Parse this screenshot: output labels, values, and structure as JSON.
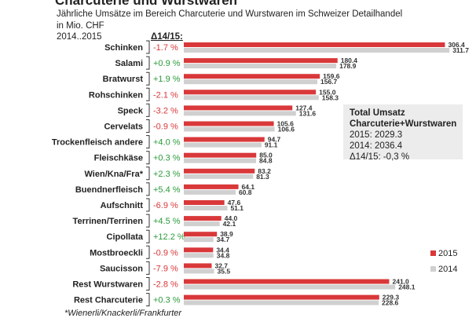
{
  "chart_data": {
    "type": "bar",
    "orientation": "horizontal",
    "title": "Charcuterie und Wurstwaren",
    "subtitle": "Jährliche Umsätze im Bereich Charcuterie und Wurstwaren im Schweizer Detailhandel",
    "unit": "in Mio. CHF",
    "period": "2014..2015",
    "delta_header": "Δ14/15:",
    "categories": [
      "Schinken",
      "Salami",
      "Bratwurst",
      "Rohschinken",
      "Speck",
      "Cervelats",
      "Trockenfleisch andere",
      "Fleischkäse",
      "Wien/Kna/Fra*",
      "Buendnerfleisch",
      "Aufschnitt",
      "Terrinen/Terrinen",
      "Cipollata",
      "Mostbroeckli",
      "Saucisson",
      "Rest Wurstwaren",
      "Rest Charcuterie"
    ],
    "deltas": [
      "-1.7 %",
      "+0.9 %",
      "+1.9 %",
      "-2.1 %",
      "-3.2 %",
      "-0.9 %",
      "+4.0 %",
      "+0.3 %",
      "+2.3 %",
      "+5.4 %",
      "-6.9 %",
      "+4.5 %",
      "+12.2 %",
      "-0.9 %",
      "-7.9 %",
      "-2.8 %",
      "+0.3 %"
    ],
    "series": [
      {
        "name": "2015",
        "color": "#d9383a",
        "values": [
          306.4,
          180.4,
          159.6,
          155.0,
          127.4,
          105.6,
          94.7,
          85.0,
          83.2,
          64.1,
          47.6,
          44.0,
          38.9,
          34.4,
          32.7,
          241.0,
          229.3
        ]
      },
      {
        "name": "2014",
        "color": "#d0d0d0",
        "values": [
          311.7,
          178.9,
          156.7,
          158.3,
          131.6,
          106.6,
          91.1,
          84.8,
          81.3,
          60.8,
          51.1,
          42.1,
          34.7,
          34.8,
          35.5,
          248.1,
          228.6
        ]
      }
    ],
    "legend": "bottom-right",
    "positive_color": "#2a9a3a",
    "negative_color": "#d9383a"
  },
  "summary": {
    "title1": "Total Umsatz",
    "title2": "Charcuterie+Wurstwaren",
    "line2015": "2015: 2029.3",
    "line2014": "2014: 2036.4",
    "delta": "Δ14/15: -0,3 %"
  },
  "footnote": "*Wienerli/Knackerli/Frankfurter"
}
